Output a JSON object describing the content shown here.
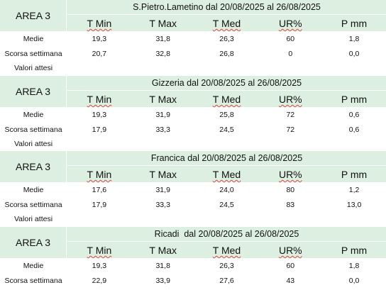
{
  "columns": [
    "T Min",
    "T Max",
    "T Med",
    "UR%",
    "P mm"
  ],
  "area_label": "AREA 3",
  "attesi_label": "Valori attesi",
  "tables": [
    {
      "title": "S.Pietro.Lametino dal 20/08/2025 al 26/08/2025",
      "rows": [
        {
          "label": "Medie",
          "values": [
            "19,3",
            "31,8",
            "26,3",
            "60",
            "1,8"
          ]
        },
        {
          "label": "Scorsa settimana",
          "values": [
            "20,7",
            "32,8",
            "26,8",
            "0",
            "0,0"
          ]
        }
      ]
    },
    {
      "title": "Gizzeria dal 20/08/2025 al 26/08/2025",
      "rows": [
        {
          "label": "Medie",
          "values": [
            "19,3",
            "31,9",
            "25,8",
            "72",
            "0,6"
          ]
        },
        {
          "label": "Scorsa settimana",
          "values": [
            "17,9",
            "33,3",
            "24,5",
            "72",
            "0,6"
          ]
        }
      ]
    },
    {
      "title": "Francica dal 20/08/2025 al 26/08/2025",
      "rows": [
        {
          "label": "Medie",
          "values": [
            "17,6",
            "31,9",
            "24,0",
            "80",
            "1,2"
          ]
        },
        {
          "label": "Scorsa settimana",
          "values": [
            "17,9",
            "33,3",
            "24,5",
            "83",
            "13,0"
          ]
        }
      ]
    },
    {
      "title": "Ricadi  dal 20/08/2025 al 26/08/2025",
      "rows": [
        {
          "label": "Medie",
          "values": [
            "19,3",
            "31,8",
            "26,3",
            "60",
            "1,8"
          ]
        },
        {
          "label": "Scorsa settimana",
          "values": [
            "22,9",
            "33,9",
            "27,6",
            "43",
            "0,0"
          ]
        }
      ]
    }
  ]
}
